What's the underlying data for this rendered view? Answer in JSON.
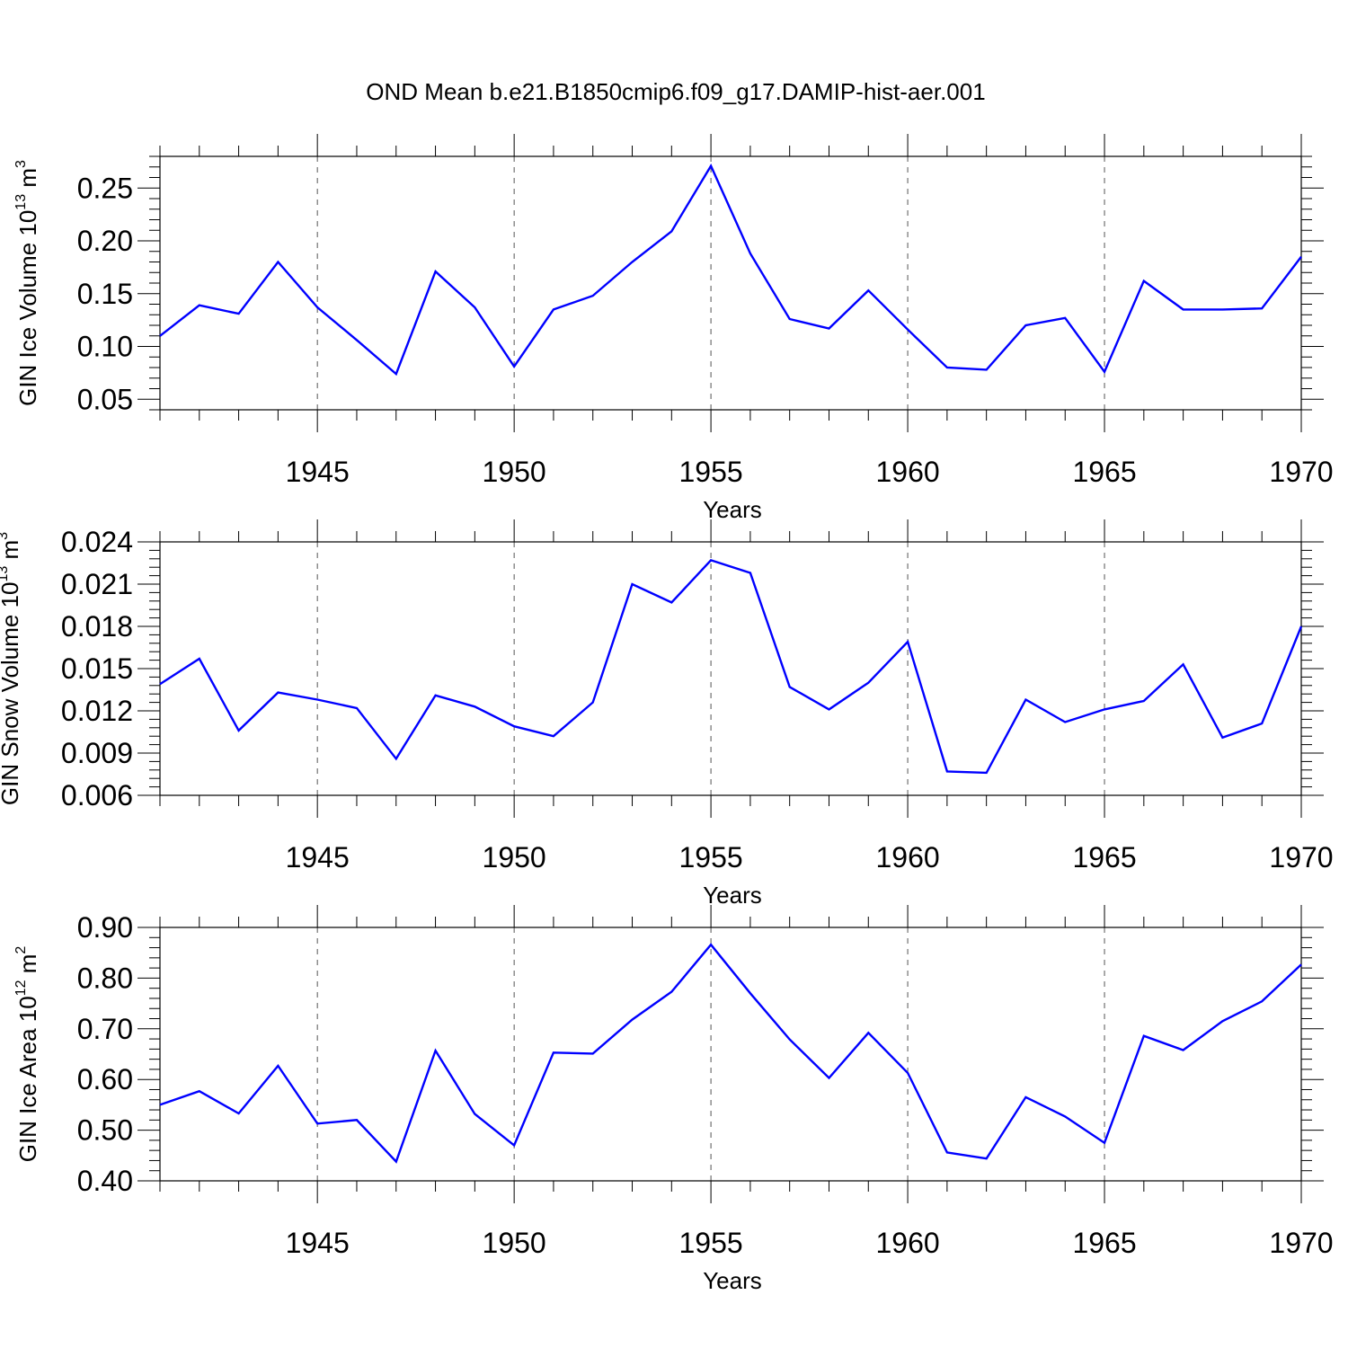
{
  "title": "OND Mean b.e21.B1850cmip6.f09_g17.DAMIP-hist-aer.001",
  "colors": {
    "line": "#0000ff",
    "frame": "#000000",
    "grid": "#555555"
  },
  "chart_data": [
    {
      "type": "line",
      "ylabel": "GIN Ice Volume 10",
      "ylabel_exp": "13",
      "ylabel_unit": " m",
      "ylabel_unit_exp": "3",
      "xlabel": "Years",
      "xlim": [
        1941,
        1970
      ],
      "ylim": [
        0.04,
        0.28
      ],
      "yticks": [
        "0.05",
        "0.10",
        "0.15",
        "0.20",
        "0.25"
      ],
      "xticks": [
        "1945",
        "1950",
        "1955",
        "1960",
        "1965",
        "1970"
      ],
      "grid": "vertical dashed at major x ticks",
      "x": [
        1941,
        1942,
        1943,
        1944,
        1945,
        1946,
        1947,
        1948,
        1949,
        1950,
        1951,
        1952,
        1953,
        1954,
        1955,
        1956,
        1957,
        1958,
        1959,
        1960,
        1961,
        1962,
        1963,
        1964,
        1965,
        1966,
        1967,
        1968,
        1969,
        1970
      ],
      "series": [
        {
          "name": "GIN Ice Volume",
          "values": [
            0.11,
            0.139,
            0.131,
            0.18,
            0.137,
            0.106,
            0.074,
            0.171,
            0.137,
            0.081,
            0.135,
            0.148,
            0.18,
            0.209,
            0.271,
            0.188,
            0.126,
            0.117,
            0.153,
            0.116,
            0.08,
            0.078,
            0.12,
            0.127,
            0.076,
            0.162,
            0.135,
            0.135,
            0.136,
            0.185
          ]
        }
      ]
    },
    {
      "type": "line",
      "ylabel": "GIN Snow Volume 10",
      "ylabel_exp": "13",
      "ylabel_unit": " m",
      "ylabel_unit_exp": "3",
      "xlabel": "Years",
      "xlim": [
        1941,
        1970
      ],
      "ylim": [
        0.006,
        0.024
      ],
      "yticks": [
        "0.006",
        "0.009",
        "0.012",
        "0.015",
        "0.018",
        "0.021",
        "0.024"
      ],
      "xticks": [
        "1945",
        "1950",
        "1955",
        "1960",
        "1965",
        "1970"
      ],
      "grid": "vertical dashed at major x ticks",
      "x": [
        1941,
        1942,
        1943,
        1944,
        1945,
        1946,
        1947,
        1948,
        1949,
        1950,
        1951,
        1952,
        1953,
        1954,
        1955,
        1956,
        1957,
        1958,
        1959,
        1960,
        1961,
        1962,
        1963,
        1964,
        1965,
        1966,
        1967,
        1968,
        1969,
        1970
      ],
      "series": [
        {
          "name": "GIN Snow Volume",
          "values": [
            0.0139,
            0.0157,
            0.0106,
            0.0133,
            0.0128,
            0.0122,
            0.0086,
            0.0131,
            0.0123,
            0.0109,
            0.0102,
            0.0126,
            0.021,
            0.0197,
            0.0227,
            0.0218,
            0.0137,
            0.0121,
            0.014,
            0.0169,
            0.0077,
            0.0076,
            0.0128,
            0.0112,
            0.0121,
            0.0127,
            0.0153,
            0.0101,
            0.0111,
            0.018
          ]
        }
      ]
    },
    {
      "type": "line",
      "ylabel": "GIN Ice Area 10",
      "ylabel_exp": "12",
      "ylabel_unit": " m",
      "ylabel_unit_exp": "2",
      "xlabel": "Years",
      "xlim": [
        1941,
        1970
      ],
      "ylim": [
        0.4,
        0.9
      ],
      "yticks": [
        "0.40",
        "0.50",
        "0.60",
        "0.70",
        "0.80",
        "0.90"
      ],
      "xticks": [
        "1945",
        "1950",
        "1955",
        "1960",
        "1965",
        "1970"
      ],
      "grid": "vertical dashed at major x ticks",
      "x": [
        1941,
        1942,
        1943,
        1944,
        1945,
        1946,
        1947,
        1948,
        1949,
        1950,
        1951,
        1952,
        1953,
        1954,
        1955,
        1956,
        1957,
        1958,
        1959,
        1960,
        1961,
        1962,
        1963,
        1964,
        1965,
        1966,
        1967,
        1968,
        1969,
        1970
      ],
      "series": [
        {
          "name": "GIN Ice Area",
          "values": [
            0.55,
            0.577,
            0.533,
            0.627,
            0.513,
            0.52,
            0.438,
            0.657,
            0.532,
            0.47,
            0.653,
            0.651,
            0.718,
            0.773,
            0.866,
            0.77,
            0.679,
            0.603,
            0.692,
            0.613,
            0.456,
            0.444,
            0.565,
            0.527,
            0.475,
            0.686,
            0.658,
            0.715,
            0.754,
            0.827
          ]
        }
      ]
    }
  ]
}
